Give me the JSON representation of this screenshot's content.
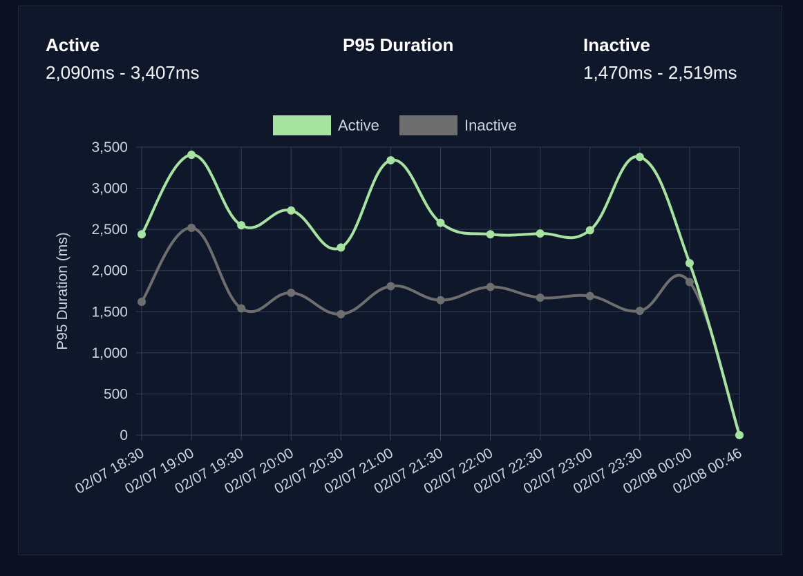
{
  "header": {
    "active": {
      "title": "Active",
      "range": "2,090ms - 3,407ms"
    },
    "center": {
      "title": "P95 Duration"
    },
    "inactive": {
      "title": "Inactive",
      "range": "1,470ms - 2,519ms"
    }
  },
  "colors": {
    "background": "#0b1120",
    "card": "#0f172a",
    "grid": "#334155",
    "active": "#a7e3a0",
    "inactive": "#6e6e6e",
    "text": "#cbd5e1"
  },
  "chart_data": {
    "type": "line",
    "ylabel": "P95 Duration (ms)",
    "xlabel": "",
    "ylim": [
      0,
      3500
    ],
    "yticks": [
      0,
      500,
      1000,
      1500,
      2000,
      2500,
      3000,
      3500
    ],
    "ytick_labels": [
      "0",
      "500",
      "1,000",
      "1,500",
      "2,000",
      "2,500",
      "3,000",
      "3,500"
    ],
    "categories": [
      "02/07 18:30",
      "02/07 19:00",
      "02/07 19:30",
      "02/07 20:00",
      "02/07 20:30",
      "02/07 21:00",
      "02/07 21:30",
      "02/07 22:00",
      "02/07 22:30",
      "02/07 23:00",
      "02/07 23:30",
      "02/08 00:00",
      "02/08 00:46"
    ],
    "legend_position": "top-center",
    "grid": true,
    "series": [
      {
        "name": "Active",
        "color": "#a7e3a0",
        "values": [
          2440,
          3407,
          2550,
          2730,
          2280,
          3340,
          2580,
          2440,
          2450,
          2490,
          3380,
          2090,
          0
        ]
      },
      {
        "name": "Inactive",
        "color": "#6e6e6e",
        "values": [
          1620,
          2519,
          1540,
          1730,
          1470,
          1810,
          1640,
          1800,
          1670,
          1690,
          1510,
          1860,
          0
        ]
      }
    ]
  }
}
